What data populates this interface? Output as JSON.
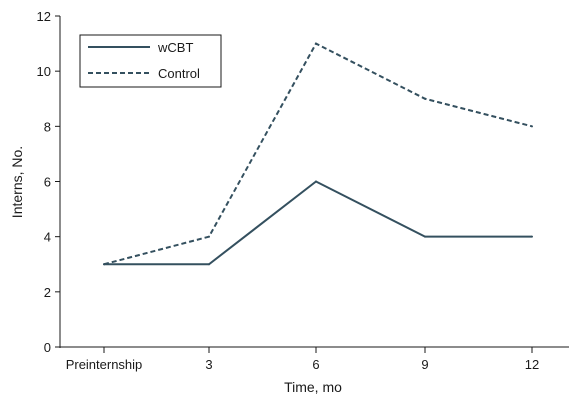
{
  "chart_data": {
    "type": "line",
    "categories": [
      "Preinternship",
      "3",
      "6",
      "9",
      "12"
    ],
    "series": [
      {
        "name": "wCBT",
        "values": [
          3,
          3,
          6,
          4,
          4
        ],
        "color": "#34505f",
        "dash": "solid"
      },
      {
        "name": "Control",
        "values": [
          3,
          4,
          11,
          9,
          8
        ],
        "color": "#34505f",
        "dash": "dashed"
      }
    ],
    "xlabel": "Time, mo",
    "ylabel": "Interns, No.",
    "ylim": [
      0,
      12
    ],
    "yticks": [
      "0",
      "2",
      "4",
      "6",
      "8",
      "10",
      "12"
    ],
    "grid": false,
    "legend_position": "top-left"
  }
}
